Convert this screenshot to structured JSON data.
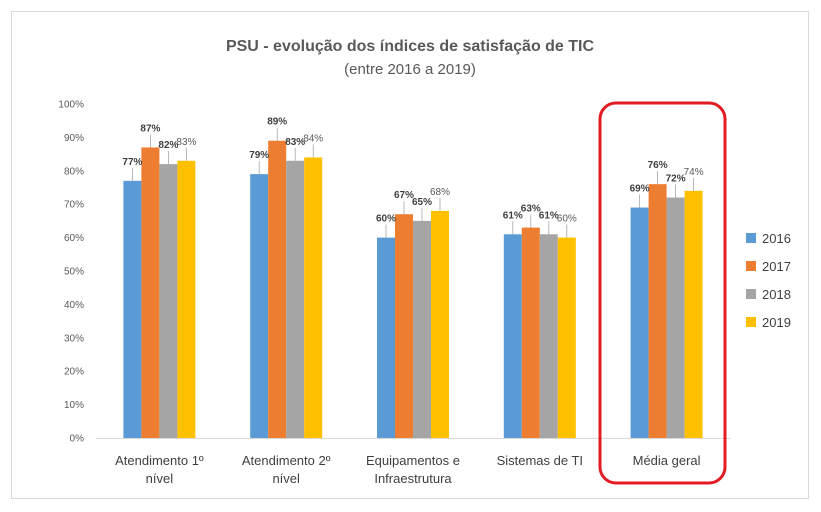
{
  "chart_data": {
    "type": "bar",
    "title": "PSU - evolução dos índices de satisfação de TIC",
    "subtitle": "(entre 2016 a 2019)",
    "categories": [
      [
        "Atendimento 1º",
        "nível"
      ],
      [
        "Atendimento 2º",
        "nível"
      ],
      [
        "Equipamentos e",
        "Infraestrutura"
      ],
      [
        "Sistemas de TI"
      ],
      [
        "Média geral"
      ]
    ],
    "series": [
      {
        "name": "2016",
        "color": "#5b9bd5",
        "values": [
          77,
          79,
          60,
          61,
          69
        ],
        "labels": [
          "77%",
          "79%",
          "60%",
          "61%",
          "69%"
        ]
      },
      {
        "name": "2017",
        "color": "#ed7d31",
        "values": [
          87,
          89,
          67,
          63,
          76
        ],
        "labels": [
          "87%",
          "89%",
          "67%",
          "63%",
          "76%"
        ]
      },
      {
        "name": "2018",
        "color": "#a5a5a5",
        "values": [
          82,
          83,
          65,
          61,
          72
        ],
        "labels": [
          "82%",
          "83%",
          "65%",
          "61%",
          "72%"
        ]
      },
      {
        "name": "2019",
        "color": "#ffc000",
        "values": [
          83,
          84,
          68,
          60,
          74
        ],
        "labels": [
          "83%",
          "84%",
          "68%",
          "60%",
          "74%"
        ]
      }
    ],
    "yticks": [
      "0%",
      "10%",
      "20%",
      "30%",
      "40%",
      "50%",
      "60%",
      "70%",
      "80%",
      "90%",
      "100%"
    ],
    "ylim": [
      0,
      100
    ],
    "grid": false,
    "legend": "right",
    "highlight": {
      "category_index": 4,
      "color": "#e31b23"
    }
  }
}
